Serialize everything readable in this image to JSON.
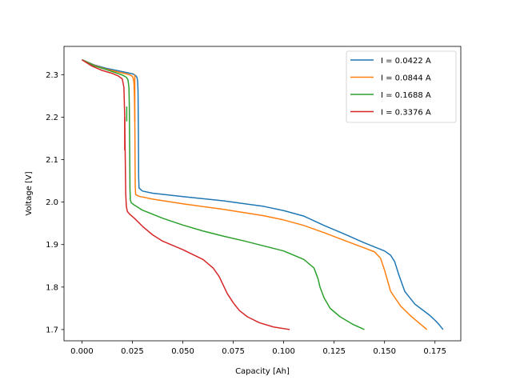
{
  "chart_data": {
    "type": "line",
    "title": "",
    "xlabel": "Capacity [Ah]",
    "ylabel": "Voltage [V]",
    "xlim": [
      -0.0089,
      0.1878
    ],
    "ylim": [
      1.6735,
      2.3665
    ],
    "xticks": [
      0.0,
      0.025,
      0.05,
      0.075,
      0.1,
      0.125,
      0.15,
      0.175
    ],
    "xtick_labels": [
      "0.000",
      "0.025",
      "0.050",
      "0.075",
      "0.100",
      "0.125",
      "0.150",
      "0.175"
    ],
    "yticks": [
      1.7,
      1.8,
      1.9,
      2.0,
      2.1,
      2.2,
      2.3
    ],
    "ytick_labels": [
      "1.7",
      "1.8",
      "1.9",
      "2.0",
      "2.1",
      "2.2",
      "2.3"
    ],
    "grid": false,
    "legend_position": "top-right",
    "series": [
      {
        "name": "I = 0.0422 A",
        "color": "#1f77b4",
        "x": [
          0.0,
          0.006,
          0.012,
          0.018,
          0.022,
          0.025,
          0.026,
          0.0268,
          0.0273,
          0.0276,
          0.0278,
          0.028,
          0.0281,
          0.0283,
          0.03,
          0.035,
          0.05,
          0.07,
          0.09,
          0.1,
          0.11,
          0.12,
          0.13,
          0.14,
          0.15,
          0.153,
          0.155,
          0.157,
          0.16,
          0.165,
          0.172,
          0.175,
          0.177,
          0.179
        ],
        "y": [
          2.335,
          2.323,
          2.315,
          2.309,
          2.305,
          2.302,
          2.3,
          2.297,
          2.293,
          2.285,
          2.26,
          2.15,
          2.06,
          2.033,
          2.026,
          2.021,
          2.013,
          2.003,
          1.99,
          1.98,
          1.967,
          1.945,
          1.925,
          1.904,
          1.885,
          1.875,
          1.86,
          1.83,
          1.79,
          1.76,
          1.735,
          1.722,
          1.712,
          1.7
        ]
      },
      {
        "name": "I = 0.0844 A",
        "color": "#ff7f0e",
        "x": [
          0.0,
          0.006,
          0.012,
          0.018,
          0.022,
          0.024,
          0.025,
          0.0255,
          0.0258,
          0.026,
          0.0262,
          0.0263,
          0.0264,
          0.0266,
          0.028,
          0.035,
          0.05,
          0.07,
          0.09,
          0.1,
          0.11,
          0.12,
          0.13,
          0.14,
          0.145,
          0.148,
          0.15,
          0.153,
          0.158,
          0.163,
          0.167,
          0.171
        ],
        "y": [
          2.335,
          2.322,
          2.313,
          2.306,
          2.302,
          2.299,
          2.296,
          2.29,
          2.28,
          2.25,
          2.195,
          2.12,
          2.04,
          2.018,
          2.014,
          2.007,
          1.996,
          1.983,
          1.968,
          1.958,
          1.945,
          1.928,
          1.91,
          1.892,
          1.883,
          1.868,
          1.84,
          1.79,
          1.755,
          1.732,
          1.716,
          1.7
        ]
      },
      {
        "name": "I = 0.1688 A",
        "color": "#2ca02c",
        "x": [
          0.0,
          0.006,
          0.012,
          0.017,
          0.02,
          0.022,
          0.0228,
          0.0233,
          0.0235,
          0.0237,
          0.0238,
          0.024,
          0.0245,
          0.026,
          0.03,
          0.04,
          0.05,
          0.06,
          0.07,
          0.08,
          0.09,
          0.1,
          0.11,
          0.115,
          0.117,
          0.118,
          0.12,
          0.123,
          0.128,
          0.134,
          0.14
        ],
        "y": [
          2.335,
          2.321,
          2.312,
          2.304,
          2.299,
          2.294,
          2.288,
          2.27,
          2.22,
          2.1,
          2.03,
          2.005,
          1.998,
          1.993,
          1.981,
          1.962,
          1.946,
          1.932,
          1.92,
          1.909,
          1.897,
          1.885,
          1.865,
          1.845,
          1.82,
          1.8,
          1.775,
          1.75,
          1.73,
          1.713,
          1.7
        ]
      },
      {
        "name": "I = 0.3376 A",
        "color": "#d62728",
        "x": [
          0.0,
          0.005,
          0.01,
          0.015,
          0.018,
          0.02,
          0.0208,
          0.0212,
          0.0215,
          0.0217,
          0.022,
          0.0225,
          0.023,
          0.024,
          0.026,
          0.03,
          0.035,
          0.04,
          0.05,
          0.06,
          0.065,
          0.068,
          0.07,
          0.072,
          0.075,
          0.078,
          0.082,
          0.088,
          0.095,
          0.103
        ],
        "y": [
          2.335,
          2.32,
          2.31,
          2.303,
          2.297,
          2.29,
          2.27,
          2.2,
          2.09,
          2.02,
          1.99,
          1.978,
          1.975,
          1.97,
          1.962,
          1.943,
          1.923,
          1.908,
          1.888,
          1.865,
          1.845,
          1.825,
          1.805,
          1.785,
          1.763,
          1.745,
          1.73,
          1.716,
          1.706,
          1.7
        ]
      }
    ],
    "artifacts": [
      {
        "series": "I = 0.0844 A",
        "x": [
          0.0262,
          0.0262
        ],
        "y": [
          2.19,
          2.3
        ]
      },
      {
        "series": "I = 0.1688 A",
        "x": [
          0.0222,
          0.0222
        ],
        "y": [
          2.19,
          2.225
        ]
      },
      {
        "series": "I = 0.3376 A",
        "x": [
          0.0212,
          0.0212
        ],
        "y": [
          2.122,
          2.2
        ]
      }
    ]
  }
}
